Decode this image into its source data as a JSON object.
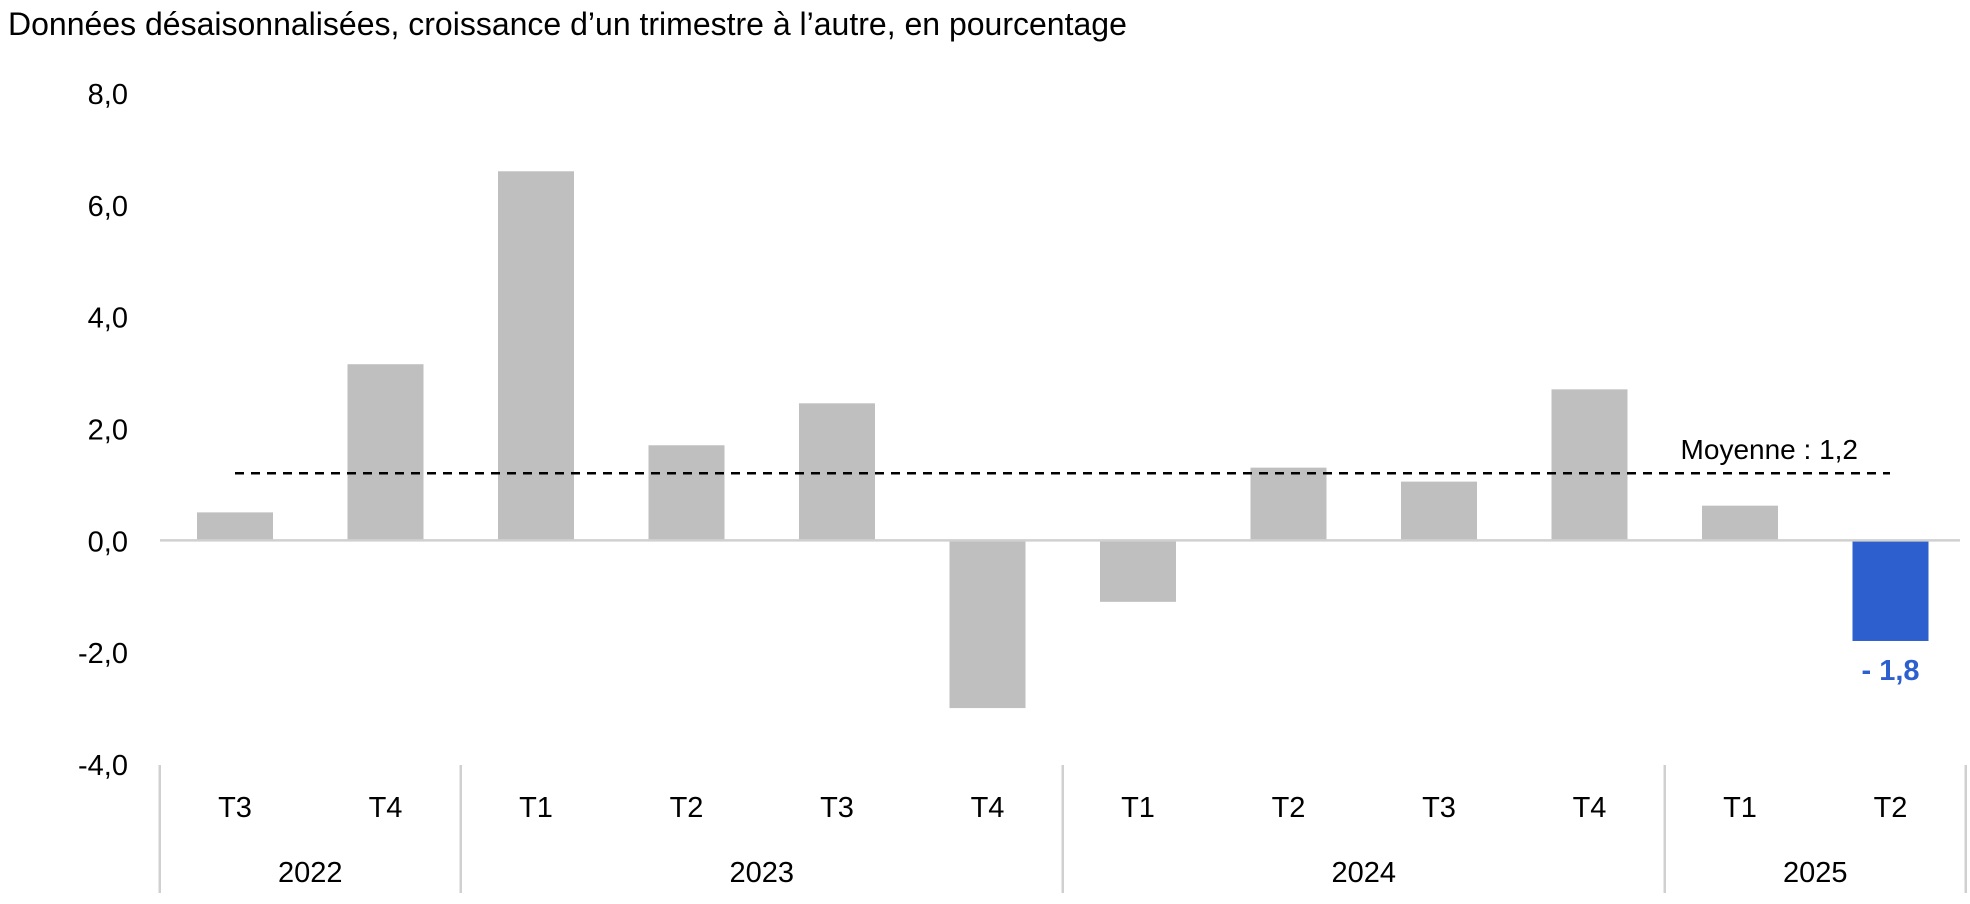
{
  "chart_data": {
    "type": "bar",
    "title": "Données désaisonnalisées, croissance d’un trimestre à l’autre, en pourcentage",
    "xlabel": "",
    "ylabel": "",
    "ylim": [
      -4,
      8
    ],
    "yticks": [
      8,
      6,
      4,
      2,
      0,
      -2,
      -4
    ],
    "ytick_labels": [
      "8,0",
      "6,0",
      "4,0",
      "2,0",
      "0,0",
      "-2,0",
      "-4,0"
    ],
    "categories": [
      "T3",
      "T4",
      "T1",
      "T2",
      "T3",
      "T4",
      "T1",
      "T2",
      "T3",
      "T4",
      "T1",
      "T2"
    ],
    "years": [
      {
        "label": "2022",
        "count": 2
      },
      {
        "label": "2023",
        "count": 4
      },
      {
        "label": "2024",
        "count": 4
      },
      {
        "label": "2025",
        "count": 2
      }
    ],
    "values": [
      0.5,
      3.15,
      6.6,
      1.7,
      2.45,
      -3.0,
      -1.1,
      1.3,
      1.05,
      2.7,
      0.62,
      -1.8
    ],
    "bar_colors": [
      "#bfbfbf",
      "#bfbfbf",
      "#bfbfbf",
      "#bfbfbf",
      "#bfbfbf",
      "#bfbfbf",
      "#bfbfbf",
      "#bfbfbf",
      "#bfbfbf",
      "#bfbfbf",
      "#bfbfbf",
      "#2e5fcf"
    ],
    "mean": {
      "value": 1.2,
      "label": "Moyenne : 1,2",
      "style": "dashed"
    },
    "highlight_label": {
      "index": 11,
      "text": "- 1,8",
      "color": "#2e5fcf"
    },
    "grid": false,
    "legend": "none"
  }
}
